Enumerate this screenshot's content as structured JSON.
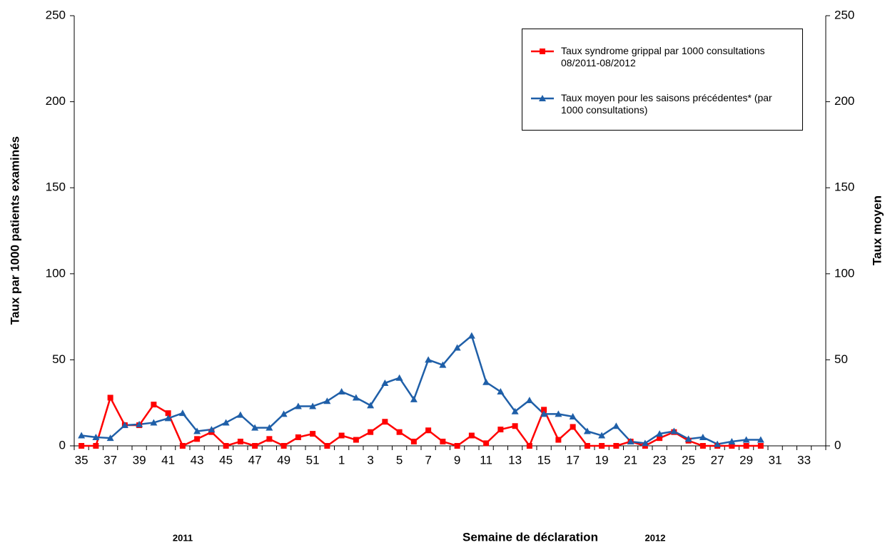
{
  "chart_data": {
    "type": "line",
    "x_label": "Semaine de déclaration",
    "y_label": "Taux par 1000 patients examinés",
    "y2_label": "Taux moyen",
    "annotations": [
      "2011",
      "2012"
    ],
    "categories": [
      35,
      null,
      37,
      null,
      39,
      null,
      41,
      null,
      43,
      null,
      45,
      null,
      47,
      null,
      49,
      null,
      51,
      null,
      1,
      null,
      3,
      null,
      5,
      null,
      7,
      null,
      9,
      null,
      11,
      null,
      13,
      null,
      15,
      null,
      17,
      null,
      19,
      null,
      21,
      null,
      23,
      null,
      25,
      null,
      27,
      null,
      29,
      null,
      31,
      null,
      33,
      null
    ],
    "series": [
      {
        "name": "Taux syndrome grippal par 1000 consultations 08/2011-08/2012",
        "color": "#ff0000",
        "marker": "square",
        "values": [
          0,
          0,
          28,
          12,
          12,
          24,
          19,
          0,
          4,
          8,
          0,
          2.5,
          0,
          4,
          0,
          5,
          7,
          0,
          6,
          3.5,
          8,
          14,
          8,
          2.5,
          9,
          2.5,
          0,
          6,
          1.5,
          9.5,
          11.5,
          0,
          21,
          3.5,
          11,
          0,
          0,
          0,
          2.5,
          0,
          4.5,
          8,
          3,
          0,
          0,
          0,
          0,
          0,
          null,
          null,
          null,
          null
        ]
      },
      {
        "name": "Taux moyen pour les saisons précédentes* (par 1000 consultations)",
        "color": "#1f5fa8",
        "marker": "triangle",
        "axis": "y2",
        "values": [
          6,
          5,
          4.5,
          12,
          12.5,
          13.5,
          16,
          19,
          8.5,
          9.5,
          13.5,
          18,
          10.5,
          10.5,
          18.5,
          23,
          23,
          26,
          31.5,
          28,
          23.5,
          36.5,
          39.5,
          27,
          50,
          47,
          57,
          64,
          37,
          31.5,
          20,
          26.5,
          18.5,
          18.5,
          17,
          8.5,
          6,
          11.5,
          2.5,
          1.5,
          7,
          8.5,
          4,
          5,
          1,
          2.5,
          3.5,
          3.5,
          null,
          null,
          null,
          null
        ]
      }
    ],
    "ylim": [
      0,
      250
    ],
    "yticks": [
      0,
      50,
      100,
      150,
      200,
      250
    ],
    "y2lim": [
      0,
      250
    ],
    "y2ticks": [
      0,
      50,
      100,
      150,
      200,
      250
    ],
    "grid": false,
    "legend": "top-right"
  }
}
